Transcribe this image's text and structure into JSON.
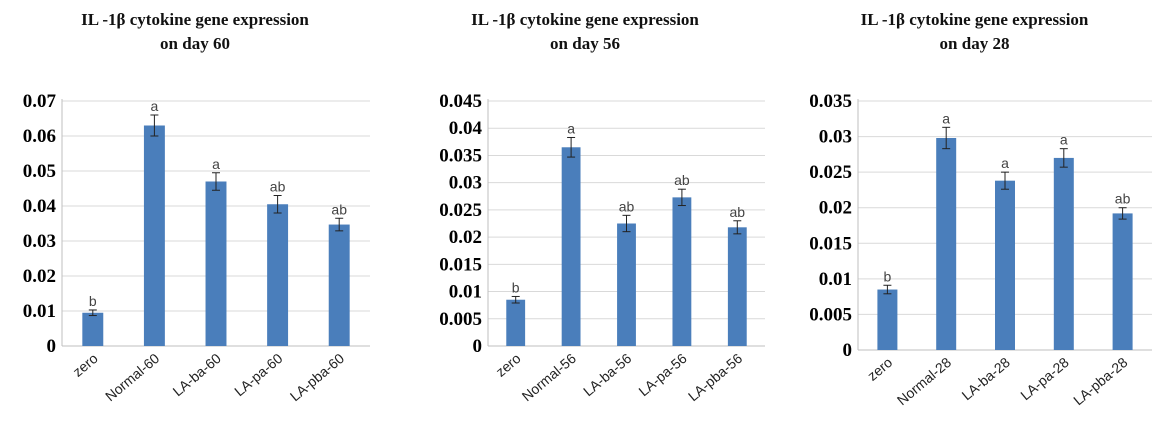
{
  "chart_data": [
    {
      "type": "bar",
      "title_line1": "IL -1β cytokine gene expression",
      "title_line2": "on day 60",
      "categories": [
        "zero",
        "Normal-60",
        "LA-ba-60",
        "LA-pa-60",
        "LA-pba-60"
      ],
      "values": [
        0.0095,
        0.063,
        0.047,
        0.0405,
        0.0347
      ],
      "errors": [
        0.0008,
        0.003,
        0.0025,
        0.0025,
        0.0018
      ],
      "significance": [
        "b",
        "a",
        "a",
        "ab",
        "ab"
      ],
      "ylim": [
        0,
        0.07
      ],
      "yticks": [
        "0",
        "0.01",
        "0.02",
        "0.03",
        "0.04",
        "0.05",
        "0.06",
        "0.07"
      ],
      "grid": true,
      "bar_color": "#4a7ebb"
    },
    {
      "type": "bar",
      "title_line1": "IL -1β cytokine gene expression",
      "title_line2": "on day 56",
      "categories": [
        "zero",
        "Normal-56",
        "LA-ba-56",
        "LA-pa-56",
        "LA-pba-56"
      ],
      "values": [
        0.0085,
        0.0365,
        0.0225,
        0.0273,
        0.0218
      ],
      "errors": [
        0.0006,
        0.0018,
        0.0015,
        0.0015,
        0.0012
      ],
      "significance": [
        "b",
        "a",
        "ab",
        "ab",
        "ab"
      ],
      "ylim": [
        0,
        0.045
      ],
      "yticks": [
        "0",
        "0.005",
        "0.01",
        "0.015",
        "0.02",
        "0.025",
        "0.03",
        "0.035",
        "0.04",
        "0.045"
      ],
      "grid": true,
      "bar_color": "#4a7ebb"
    },
    {
      "type": "bar",
      "title_line1": "IL -1β cytokine gene expression",
      "title_line2": "on day 28",
      "categories": [
        "zero",
        "Normal-28",
        "LA-ba-28",
        "LA-pa-28",
        "LA-pba-28"
      ],
      "values": [
        0.0085,
        0.0298,
        0.0238,
        0.027,
        0.0192
      ],
      "errors": [
        0.0006,
        0.0015,
        0.0012,
        0.0013,
        0.0008
      ],
      "significance": [
        "b",
        "a",
        "a",
        "a",
        "ab"
      ],
      "ylim": [
        0,
        0.035
      ],
      "yticks": [
        "0",
        "0.005",
        "0.01",
        "0.015",
        "0.02",
        "0.025",
        "0.03",
        "0.035"
      ],
      "grid": true,
      "bar_color": "#4a7ebb"
    }
  ]
}
